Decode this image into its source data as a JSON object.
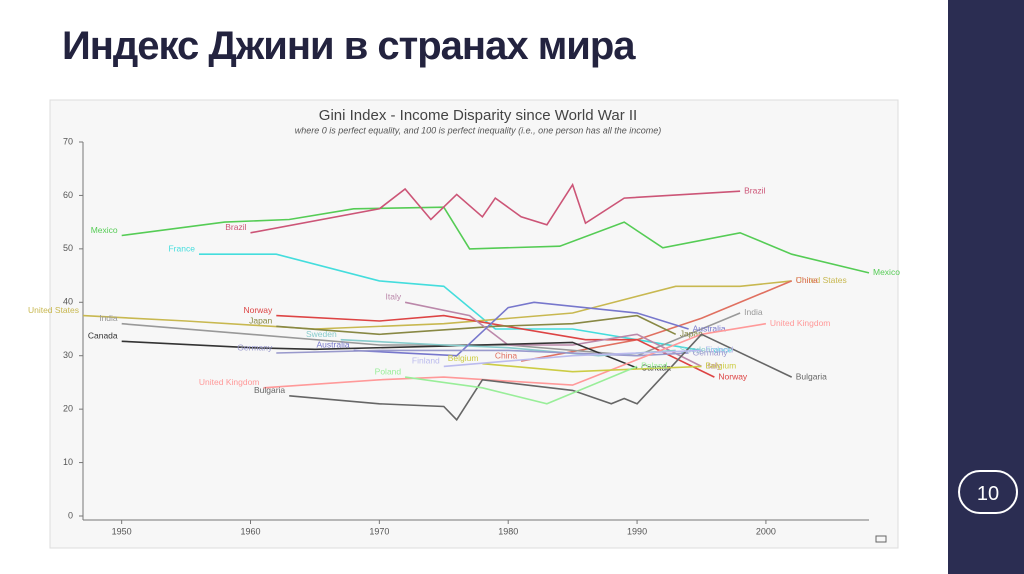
{
  "slide": {
    "title": "Индекс Джини в странах мира",
    "page_number": "10"
  },
  "chart_data": {
    "type": "line",
    "title": "Gini Index - Income Disparity since World War II",
    "subtitle": "where 0 is perfect equality, and 100 is perfect inequality (i.e., one person has all the income)",
    "xlim": [
      1947,
      2008
    ],
    "xticks": [
      1950,
      1960,
      1970,
      1980,
      1990,
      2000
    ],
    "ylim": [
      0,
      70
    ],
    "yticks": [
      0,
      10,
      20,
      30,
      40,
      50,
      60,
      70
    ],
    "grid": false,
    "series": [
      {
        "name": "Mexico",
        "color": "#55cc55",
        "x": [
          1950,
          1958,
          1963,
          1968,
          1975,
          1977,
          1984,
          1989,
          1992,
          1998,
          2002,
          2008
        ],
        "values": [
          52.5,
          55,
          55.5,
          57.5,
          57.8,
          50,
          50.5,
          55,
          50.2,
          53,
          49,
          45.5
        ]
      },
      {
        "name": "Brazil",
        "color": "#cc5577",
        "x": [
          1960,
          1970,
          1972,
          1974,
          1976,
          1978,
          1979,
          1981,
          1983,
          1985,
          1986,
          1989,
          1998
        ],
        "values": [
          53,
          57.5,
          61.2,
          55.5,
          60.2,
          56,
          59.5,
          56,
          54.5,
          62,
          54.8,
          59.5,
          60.8
        ]
      },
      {
        "name": "France",
        "color": "#44dddd",
        "x": [
          1956,
          1962,
          1970,
          1975,
          1979,
          1985,
          1990,
          1995
        ],
        "values": [
          49,
          49,
          44,
          43,
          35,
          35,
          33,
          31
        ]
      },
      {
        "name": "United States",
        "color": "#c8b850",
        "x": [
          1947,
          1955,
          1965,
          1975,
          1985,
          1993,
          1998,
          2002
        ],
        "values": [
          37.5,
          36.5,
          35,
          36,
          38,
          43,
          43,
          44
        ]
      },
      {
        "name": "China",
        "color": "#e07060",
        "x": [
          1981,
          1990,
          1995,
          2002
        ],
        "values": [
          29,
          33,
          37,
          44
        ]
      },
      {
        "name": "India",
        "color": "#999999",
        "x": [
          1950,
          1960,
          1970,
          1980,
          1990,
          1998
        ],
        "values": [
          36,
          34,
          32,
          32,
          30,
          38
        ]
      },
      {
        "name": "Norway",
        "color": "#dd4444",
        "x": [
          1962,
          1970,
          1975,
          1986,
          1990,
          1996
        ],
        "values": [
          37.5,
          36.5,
          37.5,
          33,
          33,
          26
        ]
      },
      {
        "name": "Japan",
        "color": "#888844",
        "x": [
          1962,
          1970,
          1979,
          1985,
          1990,
          1993
        ],
        "values": [
          35.5,
          34,
          35.5,
          36,
          37.5,
          34
        ]
      },
      {
        "name": "Italy",
        "color": "#bb88aa",
        "x": [
          1972,
          1977,
          1980,
          1985,
          1990,
          1995
        ],
        "values": [
          40,
          37.5,
          32,
          32,
          34,
          28
        ]
      },
      {
        "name": "Canada",
        "color": "#333333",
        "x": [
          1950,
          1960,
          1965,
          1975,
          1985,
          1990
        ],
        "values": [
          32.7,
          31.5,
          31.2,
          31.8,
          32.5,
          27.7
        ]
      },
      {
        "name": "Sweden",
        "color": "#88cccc",
        "x": [
          1967,
          1975,
          1980,
          1987,
          1993
        ],
        "values": [
          33,
          32,
          31.5,
          30,
          31
        ]
      },
      {
        "name": "Australia",
        "color": "#7777cc",
        "x": [
          1968,
          1976,
          1980,
          1982,
          1990,
          1994
        ],
        "values": [
          31,
          30,
          39,
          40,
          38,
          35
        ]
      },
      {
        "name": "Germany",
        "color": "#9999cc",
        "x": [
          1962,
          1970,
          1980,
          1990,
          1994
        ],
        "values": [
          30.5,
          31,
          31,
          30,
          30.5
        ]
      },
      {
        "name": "United Kingdom",
        "color": "#ff9999",
        "x": [
          1961,
          1970,
          1975,
          1985,
          1995,
          2000
        ],
        "values": [
          24,
          25.5,
          26,
          24.5,
          34,
          36
        ]
      },
      {
        "name": "Bulgaria",
        "color": "#666666",
        "x": [
          1963,
          1970,
          1975,
          1976,
          1978,
          1985,
          1988,
          1989,
          1990,
          1995,
          2002
        ],
        "values": [
          22.5,
          21,
          20.5,
          18,
          25.5,
          23.5,
          21,
          22,
          21,
          34,
          26
        ]
      },
      {
        "name": "Belgium",
        "color": "#cccc44",
        "x": [
          1978,
          1985,
          1995
        ],
        "values": [
          28.5,
          27,
          28
        ]
      },
      {
        "name": "Poland",
        "color": "#99ee99",
        "x": [
          1972,
          1978,
          1983,
          1990
        ],
        "values": [
          26,
          24,
          21,
          28
        ]
      },
      {
        "name": "Finland",
        "color": "#bbbbee",
        "x": [
          1975,
          1985,
          1995
        ],
        "values": [
          28,
          30,
          31
        ]
      }
    ]
  }
}
